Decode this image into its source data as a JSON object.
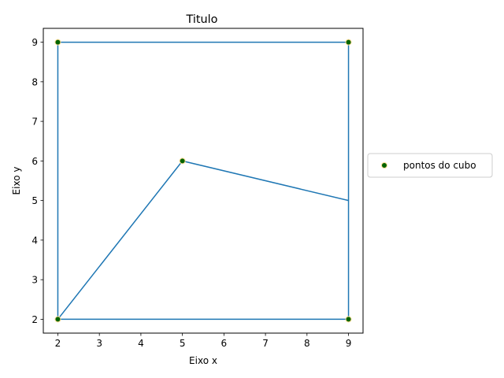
{
  "chart_data": {
    "type": "line",
    "title": "Titulo",
    "xlabel": "Eixo x",
    "ylabel": "Eixo y",
    "xlim": [
      1.65,
      9.35
    ],
    "ylim": [
      1.65,
      9.35
    ],
    "xticks": [
      2,
      3,
      4,
      5,
      6,
      7,
      8,
      9
    ],
    "yticks": [
      2,
      3,
      4,
      5,
      6,
      7,
      8,
      9
    ],
    "grid": false,
    "legend_position": "right",
    "line_series": {
      "points": [
        [
          2,
          2
        ],
        [
          9,
          2
        ],
        [
          9,
          9
        ],
        [
          2,
          9
        ],
        [
          2,
          2
        ],
        [
          5,
          6
        ],
        [
          9,
          5
        ],
        [
          9,
          2
        ]
      ],
      "color": "#1f77b4"
    },
    "scatter_series": {
      "name": "pontos do cubo",
      "points": [
        [
          2,
          2
        ],
        [
          9,
          2
        ],
        [
          9,
          9
        ],
        [
          2,
          9
        ],
        [
          5,
          6
        ]
      ],
      "color": "#006400",
      "edgecolor": "#ffdd99"
    }
  }
}
